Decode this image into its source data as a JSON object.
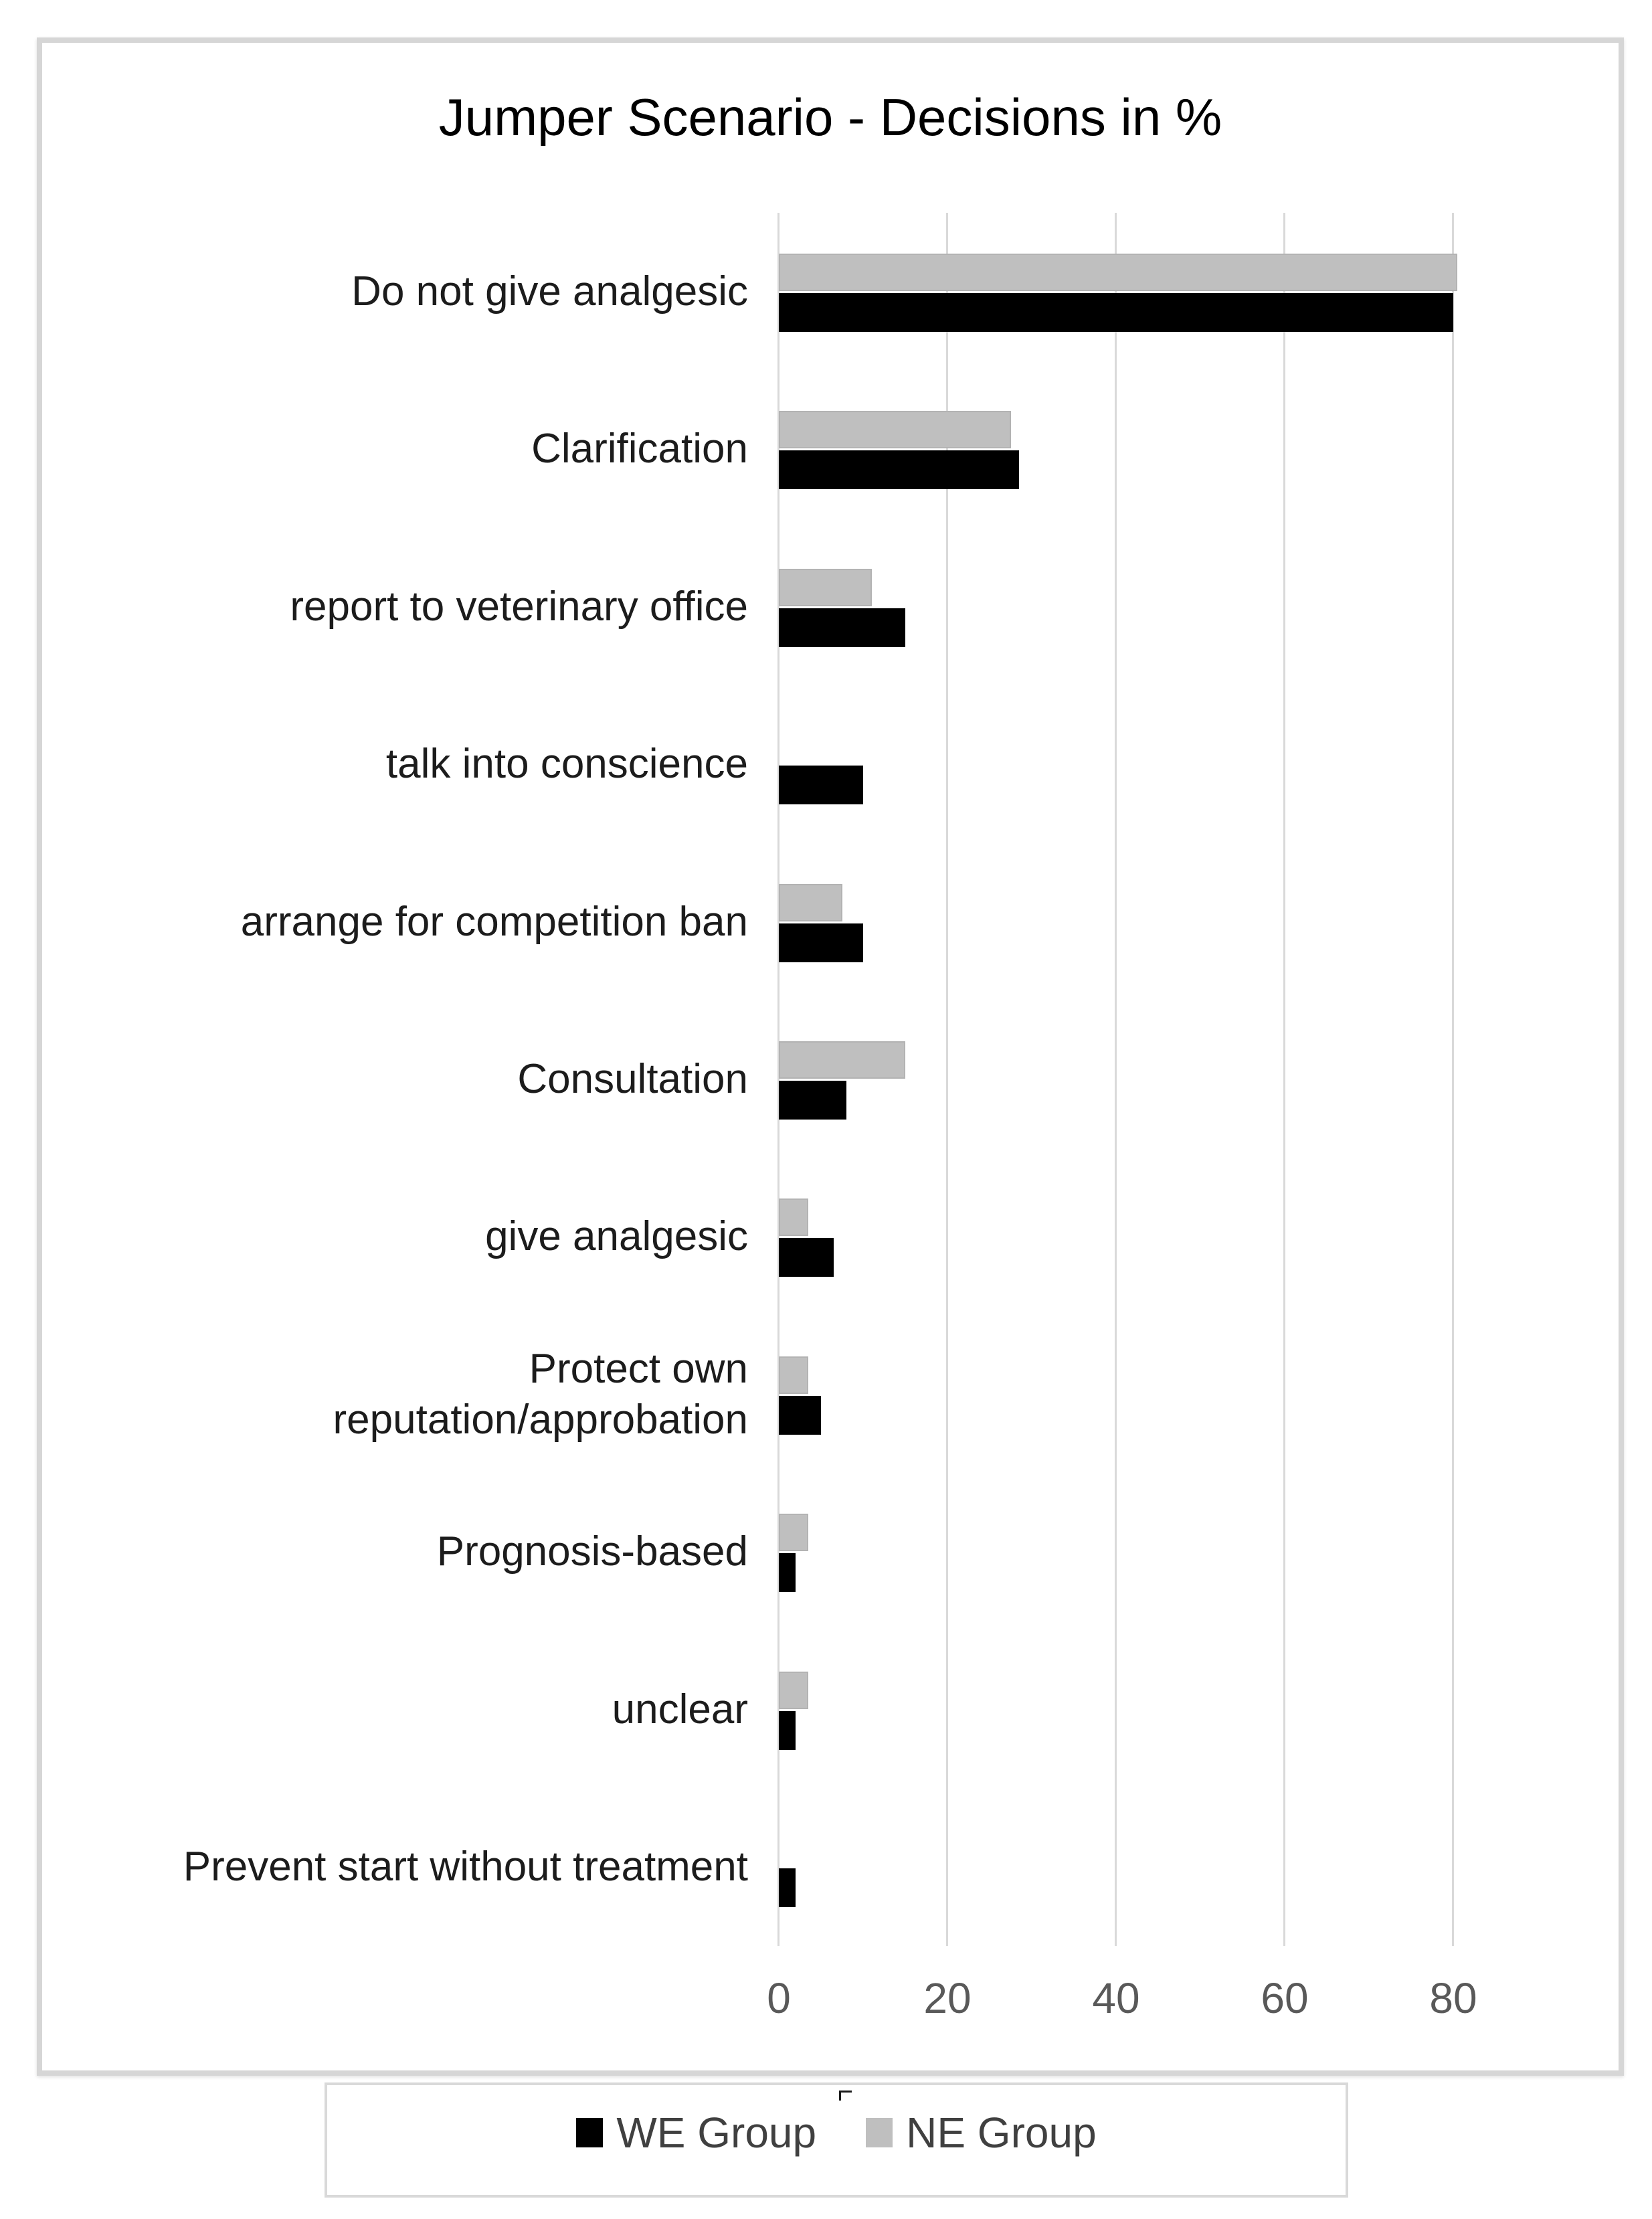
{
  "chart_data": {
    "type": "bar",
    "orientation": "horizontal",
    "title": "Jumper Scenario - Decisions in %",
    "categories": [
      "Do not give analgesic",
      "Clarification",
      "report to veterinary office",
      "talk into conscience",
      "arrange for competition ban",
      "Consultation",
      "give analgesic",
      "Protect own\nreputation/approbation",
      "Prognosis-based",
      "unclear",
      "Prevent start without treatment"
    ],
    "series": [
      {
        "name": "WE Group",
        "color": "#000000",
        "values": [
          80,
          28.5,
          15,
          10,
          10,
          8,
          6.5,
          5,
          2,
          2,
          2
        ]
      },
      {
        "name": "NE Group",
        "color": "#bfbfbf",
        "values": [
          80.5,
          27.5,
          11,
          0,
          7.5,
          15,
          3.5,
          3.5,
          3.5,
          3.5,
          0
        ]
      }
    ],
    "x_ticks": [
      0,
      20,
      40,
      60,
      80
    ],
    "xlim": [
      0,
      100
    ],
    "grid": "vertical-only",
    "gridline_color": "#d9d9d9",
    "tick_label_color": "#595959",
    "legend_position": "bottom"
  },
  "legend": {
    "items": [
      {
        "label": "WE Group",
        "color": "#000000"
      },
      {
        "label": "NE Group",
        "color": "#bfbfbf"
      }
    ]
  }
}
